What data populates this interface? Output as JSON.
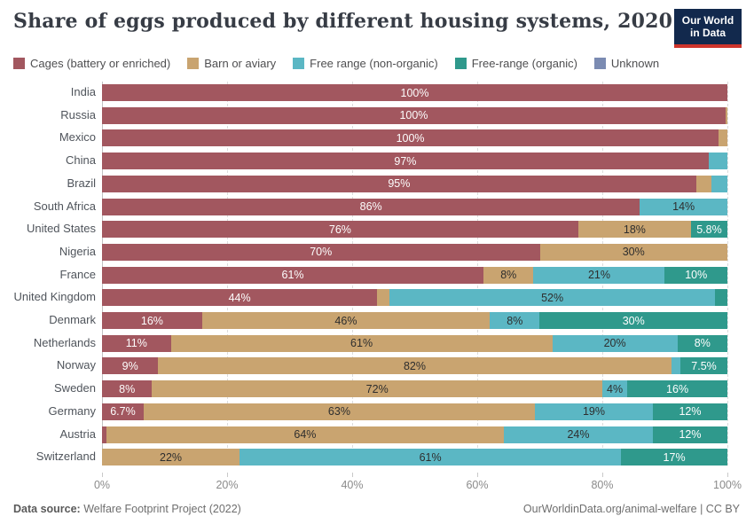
{
  "header": {
    "title": "Share of eggs produced by different housing systems, 2020",
    "logo": {
      "line1": "Our World",
      "line2": "in Data"
    }
  },
  "footer": {
    "source_label": "Data source:",
    "source_value": " Welfare Footprint Project (2022)",
    "right": "OurWorldinData.org/animal-welfare | CC BY"
  },
  "colors": {
    "logo_navy": "#12294D",
    "logo_red": "#CE342B",
    "gridline": "#DCDCDC"
  },
  "chart_data": {
    "type": "bar",
    "variant": "stacked-horizontal",
    "title": "Share of eggs produced by different housing systems, 2020",
    "xlabel": "",
    "ylabel": "",
    "xlim": [
      0,
      100
    ],
    "grid": "vertical-dashed",
    "legend_position": "top",
    "x_ticks": [
      {
        "value": 0,
        "label": "0%"
      },
      {
        "value": 20,
        "label": "20%"
      },
      {
        "value": 40,
        "label": "40%"
      },
      {
        "value": 60,
        "label": "60%"
      },
      {
        "value": 80,
        "label": "80%"
      },
      {
        "value": 100,
        "label": "100%"
      }
    ],
    "legend": [
      {
        "key": "cages",
        "label": "Cages (battery or enriched)",
        "color": "#A2575F",
        "text": "light"
      },
      {
        "key": "barn-or-aviary",
        "label": "Barn or aviary",
        "color": "#C9A470",
        "text": "dark"
      },
      {
        "key": "free-range-nonorganic",
        "label": "Free range (non-organic)",
        "color": "#5BB7C4",
        "text": "dark"
      },
      {
        "key": "free-range-organic",
        "label": "Free-range (organic)",
        "color": "#2F998C",
        "text": "light"
      },
      {
        "key": "unknown",
        "label": "Unknown",
        "color": "#7B8BB2",
        "text": "light"
      }
    ],
    "rows": [
      {
        "country": "India",
        "segments": [
          {
            "series": 0,
            "value": 100,
            "label": "100%"
          }
        ]
      },
      {
        "country": "Russia",
        "segments": [
          {
            "series": 0,
            "value": 99.7,
            "label": "100%"
          },
          {
            "series": 1,
            "value": 0.3,
            "label": ""
          }
        ]
      },
      {
        "country": "Mexico",
        "segments": [
          {
            "series": 0,
            "value": 98.6,
            "label": "100%"
          },
          {
            "series": 1,
            "value": 1.4,
            "label": ""
          }
        ]
      },
      {
        "country": "China",
        "segments": [
          {
            "series": 0,
            "value": 97,
            "label": "97%"
          },
          {
            "series": 2,
            "value": 3,
            "label": ""
          }
        ]
      },
      {
        "country": "Brazil",
        "segments": [
          {
            "series": 0,
            "value": 95,
            "label": "95%"
          },
          {
            "series": 1,
            "value": 2.5,
            "label": ""
          },
          {
            "series": 2,
            "value": 2.5,
            "label": ""
          }
        ]
      },
      {
        "country": "South Africa",
        "segments": [
          {
            "series": 0,
            "value": 86,
            "label": "86%"
          },
          {
            "series": 2,
            "value": 14,
            "label": "14%"
          }
        ]
      },
      {
        "country": "United States",
        "segments": [
          {
            "series": 0,
            "value": 76,
            "label": "76%"
          },
          {
            "series": 1,
            "value": 18,
            "label": "18%"
          },
          {
            "series": 3,
            "value": 5.8,
            "label": "5.8%"
          }
        ]
      },
      {
        "country": "Nigeria",
        "segments": [
          {
            "series": 0,
            "value": 70,
            "label": "70%"
          },
          {
            "series": 1,
            "value": 30,
            "label": "30%"
          }
        ]
      },
      {
        "country": "France",
        "segments": [
          {
            "series": 0,
            "value": 61,
            "label": "61%"
          },
          {
            "series": 1,
            "value": 8,
            "label": "8%"
          },
          {
            "series": 2,
            "value": 21,
            "label": "21%"
          },
          {
            "series": 3,
            "value": 10,
            "label": "10%"
          }
        ]
      },
      {
        "country": "United Kingdom",
        "segments": [
          {
            "series": 0,
            "value": 44,
            "label": "44%"
          },
          {
            "series": 1,
            "value": 2,
            "label": ""
          },
          {
            "series": 2,
            "value": 52,
            "label": "52%"
          },
          {
            "series": 3,
            "value": 2,
            "label": ""
          }
        ]
      },
      {
        "country": "Denmark",
        "segments": [
          {
            "series": 0,
            "value": 16,
            "label": "16%"
          },
          {
            "series": 1,
            "value": 46,
            "label": "46%"
          },
          {
            "series": 2,
            "value": 8,
            "label": "8%"
          },
          {
            "series": 3,
            "value": 30,
            "label": "30%"
          }
        ]
      },
      {
        "country": "Netherlands",
        "segments": [
          {
            "series": 0,
            "value": 11,
            "label": "11%"
          },
          {
            "series": 1,
            "value": 61,
            "label": "61%"
          },
          {
            "series": 2,
            "value": 20,
            "label": "20%"
          },
          {
            "series": 3,
            "value": 8,
            "label": "8%"
          }
        ]
      },
      {
        "country": "Norway",
        "segments": [
          {
            "series": 0,
            "value": 9,
            "label": "9%"
          },
          {
            "series": 1,
            "value": 82,
            "label": "82%"
          },
          {
            "series": 2,
            "value": 1.5,
            "label": ""
          },
          {
            "series": 3,
            "value": 7.5,
            "label": "7.5%"
          }
        ]
      },
      {
        "country": "Sweden",
        "segments": [
          {
            "series": 0,
            "value": 8,
            "label": "8%"
          },
          {
            "series": 1,
            "value": 72,
            "label": "72%"
          },
          {
            "series": 2,
            "value": 4,
            "label": "4%"
          },
          {
            "series": 3,
            "value": 16,
            "label": "16%"
          }
        ]
      },
      {
        "country": "Germany",
        "segments": [
          {
            "series": 0,
            "value": 6.7,
            "label": "6.7%"
          },
          {
            "series": 1,
            "value": 63,
            "label": "63%"
          },
          {
            "series": 2,
            "value": 19,
            "label": "19%"
          },
          {
            "series": 3,
            "value": 12,
            "label": "12%"
          }
        ]
      },
      {
        "country": "Austria",
        "segments": [
          {
            "series": 0,
            "value": 0.7,
            "label": ""
          },
          {
            "series": 1,
            "value": 64,
            "label": "64%"
          },
          {
            "series": 2,
            "value": 24,
            "label": "24%"
          },
          {
            "series": 3,
            "value": 12,
            "label": "12%"
          }
        ]
      },
      {
        "country": "Switzerland",
        "segments": [
          {
            "series": 1,
            "value": 22,
            "label": "22%"
          },
          {
            "series": 2,
            "value": 61,
            "label": "61%"
          },
          {
            "series": 3,
            "value": 17,
            "label": "17%"
          }
        ]
      }
    ]
  }
}
